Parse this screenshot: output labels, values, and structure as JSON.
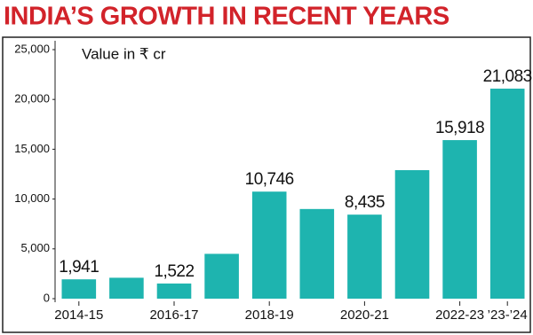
{
  "chart_data": {
    "type": "bar",
    "title": "INDIA’S GROWTH IN RECENT YEARS",
    "subtitle": "Value in ₹ cr",
    "categories": [
      "2014-15",
      null,
      "2016-17",
      null,
      "2018-19",
      null,
      "2020-21",
      null,
      "2022-23",
      "’23-’24"
    ],
    "values": [
      1941,
      2100,
      1522,
      4500,
      10746,
      9000,
      8435,
      12900,
      15918,
      21083
    ],
    "value_labels": [
      "1,941",
      null,
      "1,522",
      null,
      "10,746",
      null,
      "8,435",
      null,
      "15,918",
      "21,083"
    ],
    "color": "#1eb4af",
    "ylim": [
      0,
      25000
    ],
    "yticks": [
      0,
      {
        "value": 5000,
        "label": "5,000"
      },
      {
        "value": 10000,
        "label": "10,000"
      },
      {
        "value": 15000,
        "label": "15,000"
      },
      {
        "value": 20000,
        "label": "20,000"
      },
      {
        "value": 25000,
        "label": "25,000"
      }
    ],
    "grid": false
  }
}
